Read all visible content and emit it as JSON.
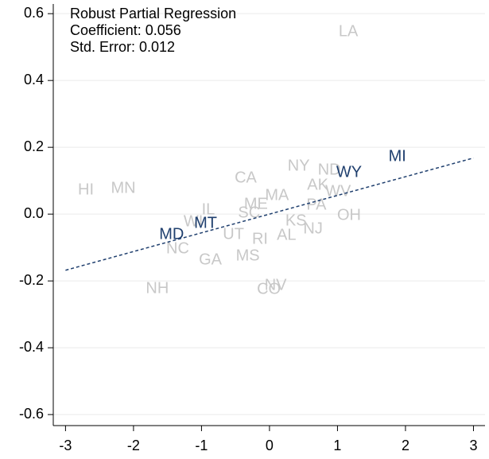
{
  "chart_data": {
    "type": "scatter",
    "annotations": [
      "Robust Partial Regression",
      "Coefficient: 0.056",
      "Std. Error:  0.012"
    ],
    "xlim": [
      -3.18,
      3.17
    ],
    "ylim": [
      -0.633,
      0.629
    ],
    "xticks": [
      -3,
      -2,
      -1,
      0,
      1,
      2,
      3
    ],
    "yticks": [
      0.6,
      0.4,
      0.2,
      {
        "value": 0,
        "label": "0.0"
      },
      -0.2,
      -0.4,
      -0.6
    ],
    "grid": true,
    "series": [
      {
        "color": "#c8c8c8",
        "labels": [
          "LA",
          "HI",
          "MN",
          "CA",
          "NY",
          "ND",
          "AK",
          "MA",
          "WV",
          "OH",
          "IL",
          "WI",
          "NC",
          "GA",
          "MS",
          "UT",
          "RI",
          "NJ",
          "AL",
          "SC",
          "ME",
          "KS",
          "PA",
          "NH",
          "CO",
          "NV"
        ],
        "x": [
          1.16,
          -2.7,
          -2.15,
          -0.35,
          0.43,
          0.88,
          0.71,
          0.11,
          1.01,
          1.17,
          -0.9,
          -1.12,
          -1.35,
          -0.87,
          -0.32,
          -0.53,
          -0.14,
          0.64,
          0.25,
          -0.3,
          -0.2,
          0.39,
          0.69,
          -1.65,
          -0.01,
          0.09
        ],
        "values": [
          0.545,
          0.071,
          0.076,
          0.107,
          0.143,
          0.131,
          0.086,
          0.055,
          0.067,
          -0.005,
          0.012,
          -0.024,
          -0.105,
          -0.138,
          -0.126,
          -0.062,
          -0.076,
          -0.045,
          -0.064,
          0.002,
          0.029,
          -0.021,
          0.026,
          -0.224,
          -0.226,
          -0.214
        ]
      },
      {
        "color": "#1f3f6e",
        "labels": [
          "MI",
          "WY",
          "MT",
          "MD"
        ],
        "x": [
          1.88,
          1.17,
          -0.94,
          -1.44
        ],
        "values": [
          0.171,
          0.124,
          -0.029,
          -0.062
        ]
      }
    ],
    "fit": {
      "color": "#1f3f6e",
      "x": [
        -3,
        3
      ],
      "values": [
        -0.168,
        0.168
      ]
    }
  }
}
